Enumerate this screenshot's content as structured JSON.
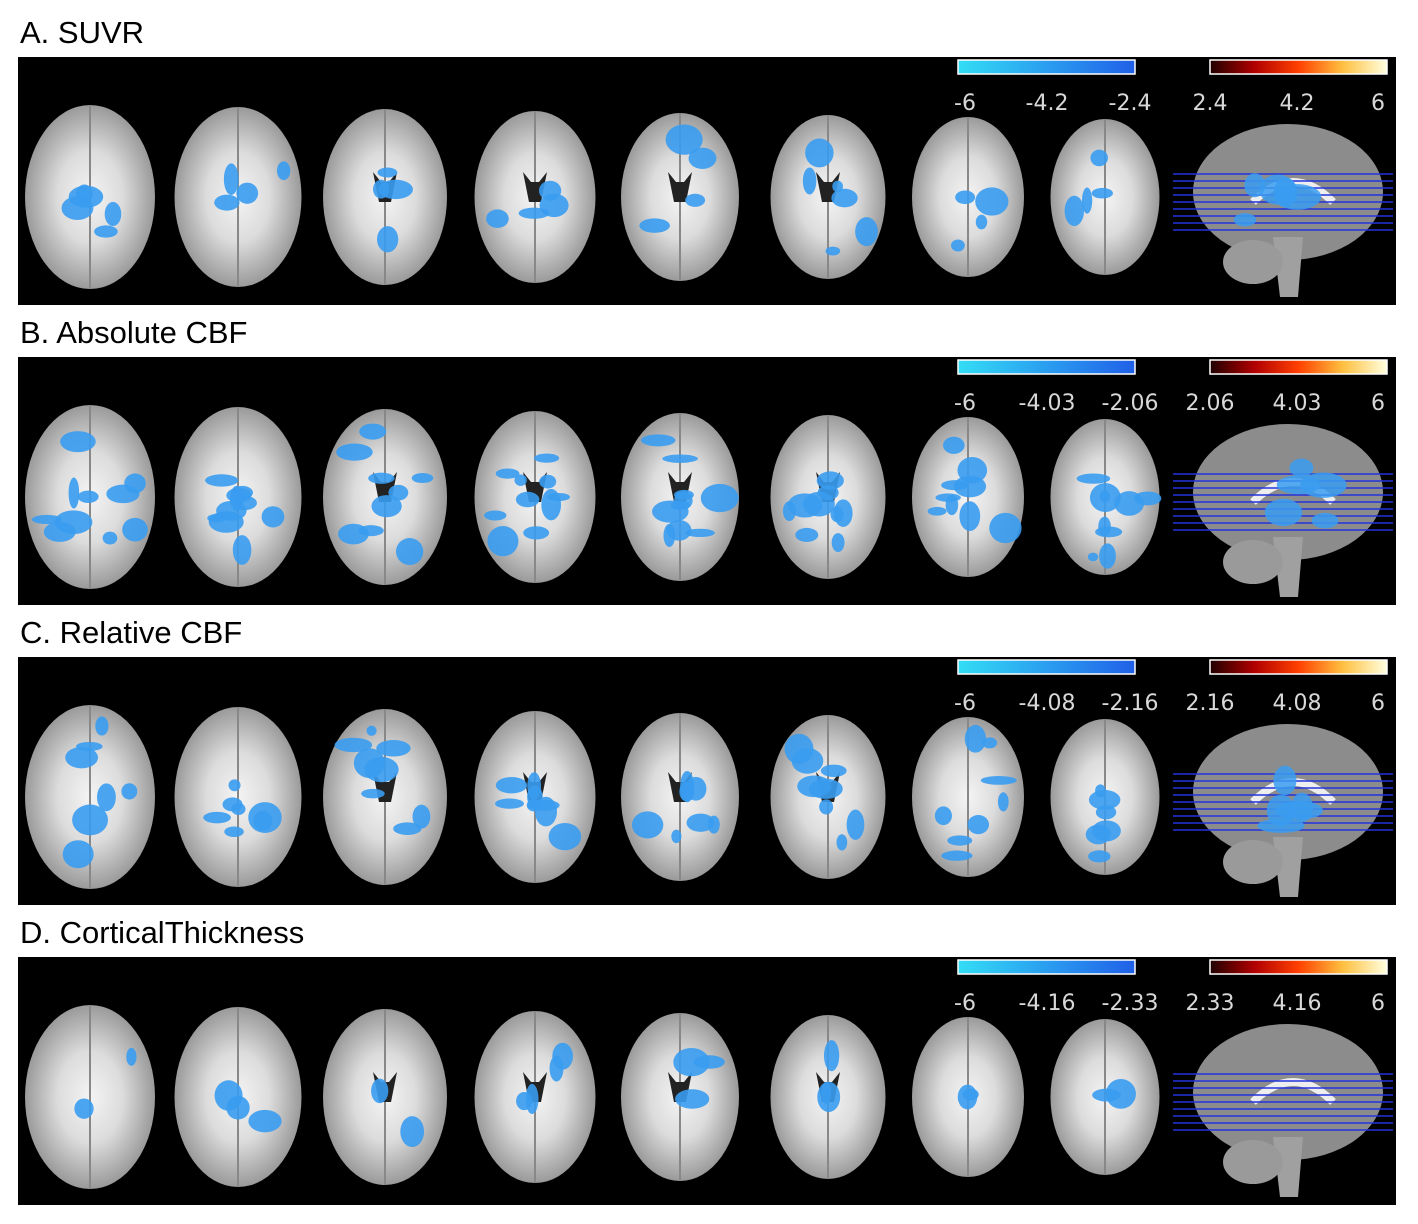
{
  "panels": [
    {
      "title": "A. SUVR",
      "negative_ticks": [
        "-6",
        "-4.2",
        "-2.4"
      ],
      "positive_ticks": [
        "2.4",
        "4.2",
        "6"
      ]
    },
    {
      "title": "B. Absolute CBF",
      "negative_ticks": [
        "-6",
        "-4.03",
        "-2.06"
      ],
      "positive_ticks": [
        "2.06",
        "4.03",
        "6"
      ]
    },
    {
      "title": "C. Relative CBF",
      "negative_ticks": [
        "-6",
        "-4.08",
        "-2.16"
      ],
      "positive_ticks": [
        "2.16",
        "4.08",
        "6"
      ]
    },
    {
      "title": "D. CorticalThickness",
      "negative_ticks": [
        "-6",
        "-4.16",
        "-2.33"
      ],
      "positive_ticks": [
        "2.33",
        "4.16",
        "6"
      ]
    }
  ]
}
